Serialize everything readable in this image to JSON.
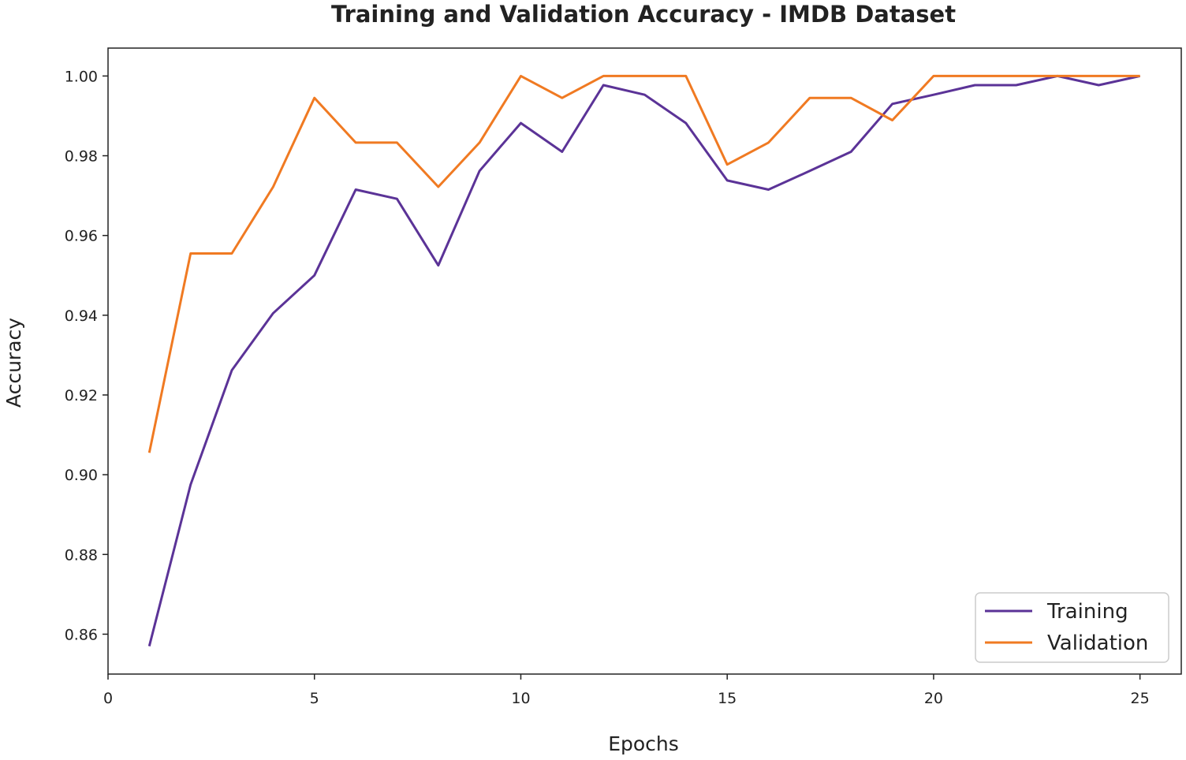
{
  "chart_data": {
    "type": "line",
    "title": "Training and Validation Accuracy - IMDB Dataset",
    "xlabel": "Epochs",
    "ylabel": "Accuracy",
    "xlim": [
      0,
      26
    ],
    "ylim": [
      0.85,
      1.007
    ],
    "xticks": [
      0,
      5,
      10,
      15,
      20,
      25
    ],
    "yticks": [
      0.86,
      0.88,
      0.9,
      0.92,
      0.94,
      0.96,
      0.98,
      1.0
    ],
    "grid": false,
    "legend_position": "lower-right",
    "x": [
      1,
      2,
      3,
      4,
      5,
      6,
      7,
      8,
      9,
      10,
      11,
      12,
      13,
      14,
      15,
      16,
      17,
      18,
      19,
      20,
      21,
      22,
      23,
      24,
      25
    ],
    "series": [
      {
        "name": "Training",
        "color": "#5b3397",
        "values": [
          0.857,
          0.8975,
          0.9262,
          0.9405,
          0.95,
          0.9715,
          0.9692,
          0.9525,
          0.9762,
          0.9882,
          0.981,
          0.9977,
          0.9953,
          0.9882,
          0.9738,
          0.9715,
          0.9762,
          0.981,
          0.993,
          0.9953,
          0.9977,
          0.9977,
          1.0,
          0.9977,
          1.0
        ]
      },
      {
        "name": "Validation",
        "color": "#f07a22",
        "values": [
          0.9055,
          0.9555,
          0.9555,
          0.9722,
          0.9945,
          0.9833,
          0.9833,
          0.9722,
          0.9833,
          1.0,
          0.9945,
          1.0,
          1.0,
          1.0,
          0.9778,
          0.9833,
          0.9945,
          0.9945,
          0.9889,
          1.0,
          1.0,
          1.0,
          1.0,
          1.0,
          1.0
        ]
      }
    ]
  }
}
